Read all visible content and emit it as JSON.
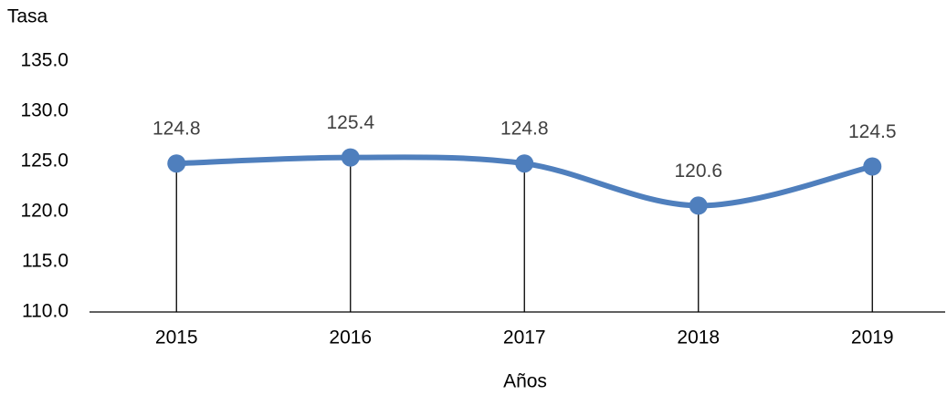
{
  "chart_data": {
    "type": "line",
    "y_label": "Tasa",
    "x_label": "Años",
    "categories": [
      "2015",
      "2016",
      "2017",
      "2018",
      "2019"
    ],
    "values": [
      124.8,
      125.4,
      124.8,
      120.6,
      124.5
    ],
    "color": "#4f7fbd",
    "smooth": true,
    "drop_lines": true,
    "ylim": [
      110,
      135
    ],
    "yticks": [
      {
        "value": 110,
        "label": "110.0"
      },
      {
        "value": 115,
        "label": "115.0"
      },
      {
        "value": 120,
        "label": "120.0"
      },
      {
        "value": 125,
        "label": "125.0"
      },
      {
        "value": 130,
        "label": "130.0"
      },
      {
        "value": 135,
        "label": "135.0"
      }
    ]
  }
}
